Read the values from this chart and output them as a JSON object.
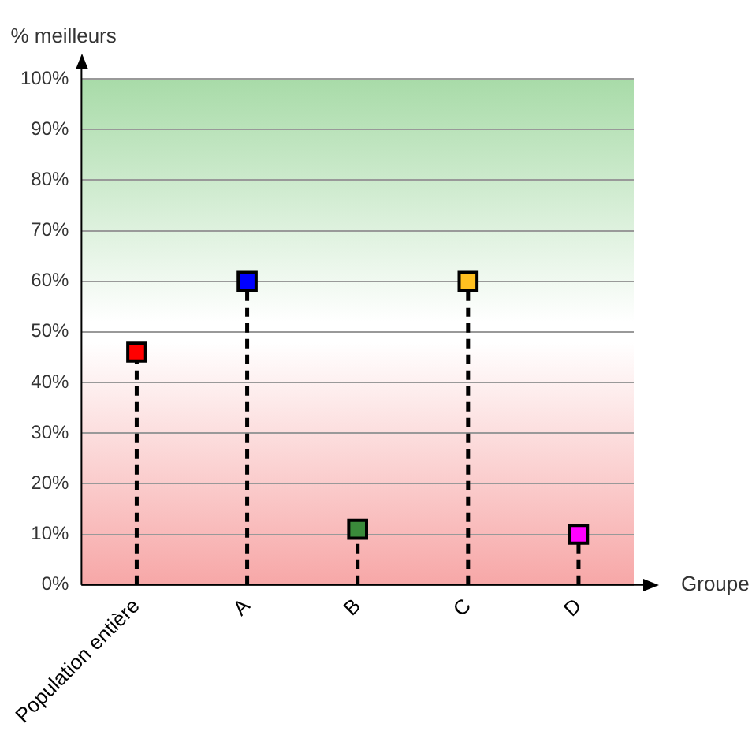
{
  "chart_data": {
    "type": "lollipop",
    "xlabel": "Groupe",
    "ylabel": "% meilleurs",
    "categories": [
      "Population entière",
      "A",
      "B",
      "C",
      "D"
    ],
    "values": [
      46,
      60,
      11,
      60,
      10
    ],
    "colors": [
      "#ff0000",
      "#0000ff",
      "#3a8a3a",
      "#ffc020",
      "#ff00ff"
    ],
    "ylim": [
      0,
      100
    ],
    "yticks": [
      {
        "value": 0,
        "label": "0%"
      },
      {
        "value": 10,
        "label": "10%"
      },
      {
        "value": 20,
        "label": "20%"
      },
      {
        "value": 30,
        "label": "30%"
      },
      {
        "value": 40,
        "label": "40%"
      },
      {
        "value": 50,
        "label": "50%"
      },
      {
        "value": 60,
        "label": "60%"
      },
      {
        "value": 70,
        "label": "70%"
      },
      {
        "value": 80,
        "label": "80%"
      },
      {
        "value": 90,
        "label": "90%"
      },
      {
        "value": 100,
        "label": "100%"
      }
    ],
    "grid": "y",
    "marker": "square",
    "line_style": "dashed"
  }
}
